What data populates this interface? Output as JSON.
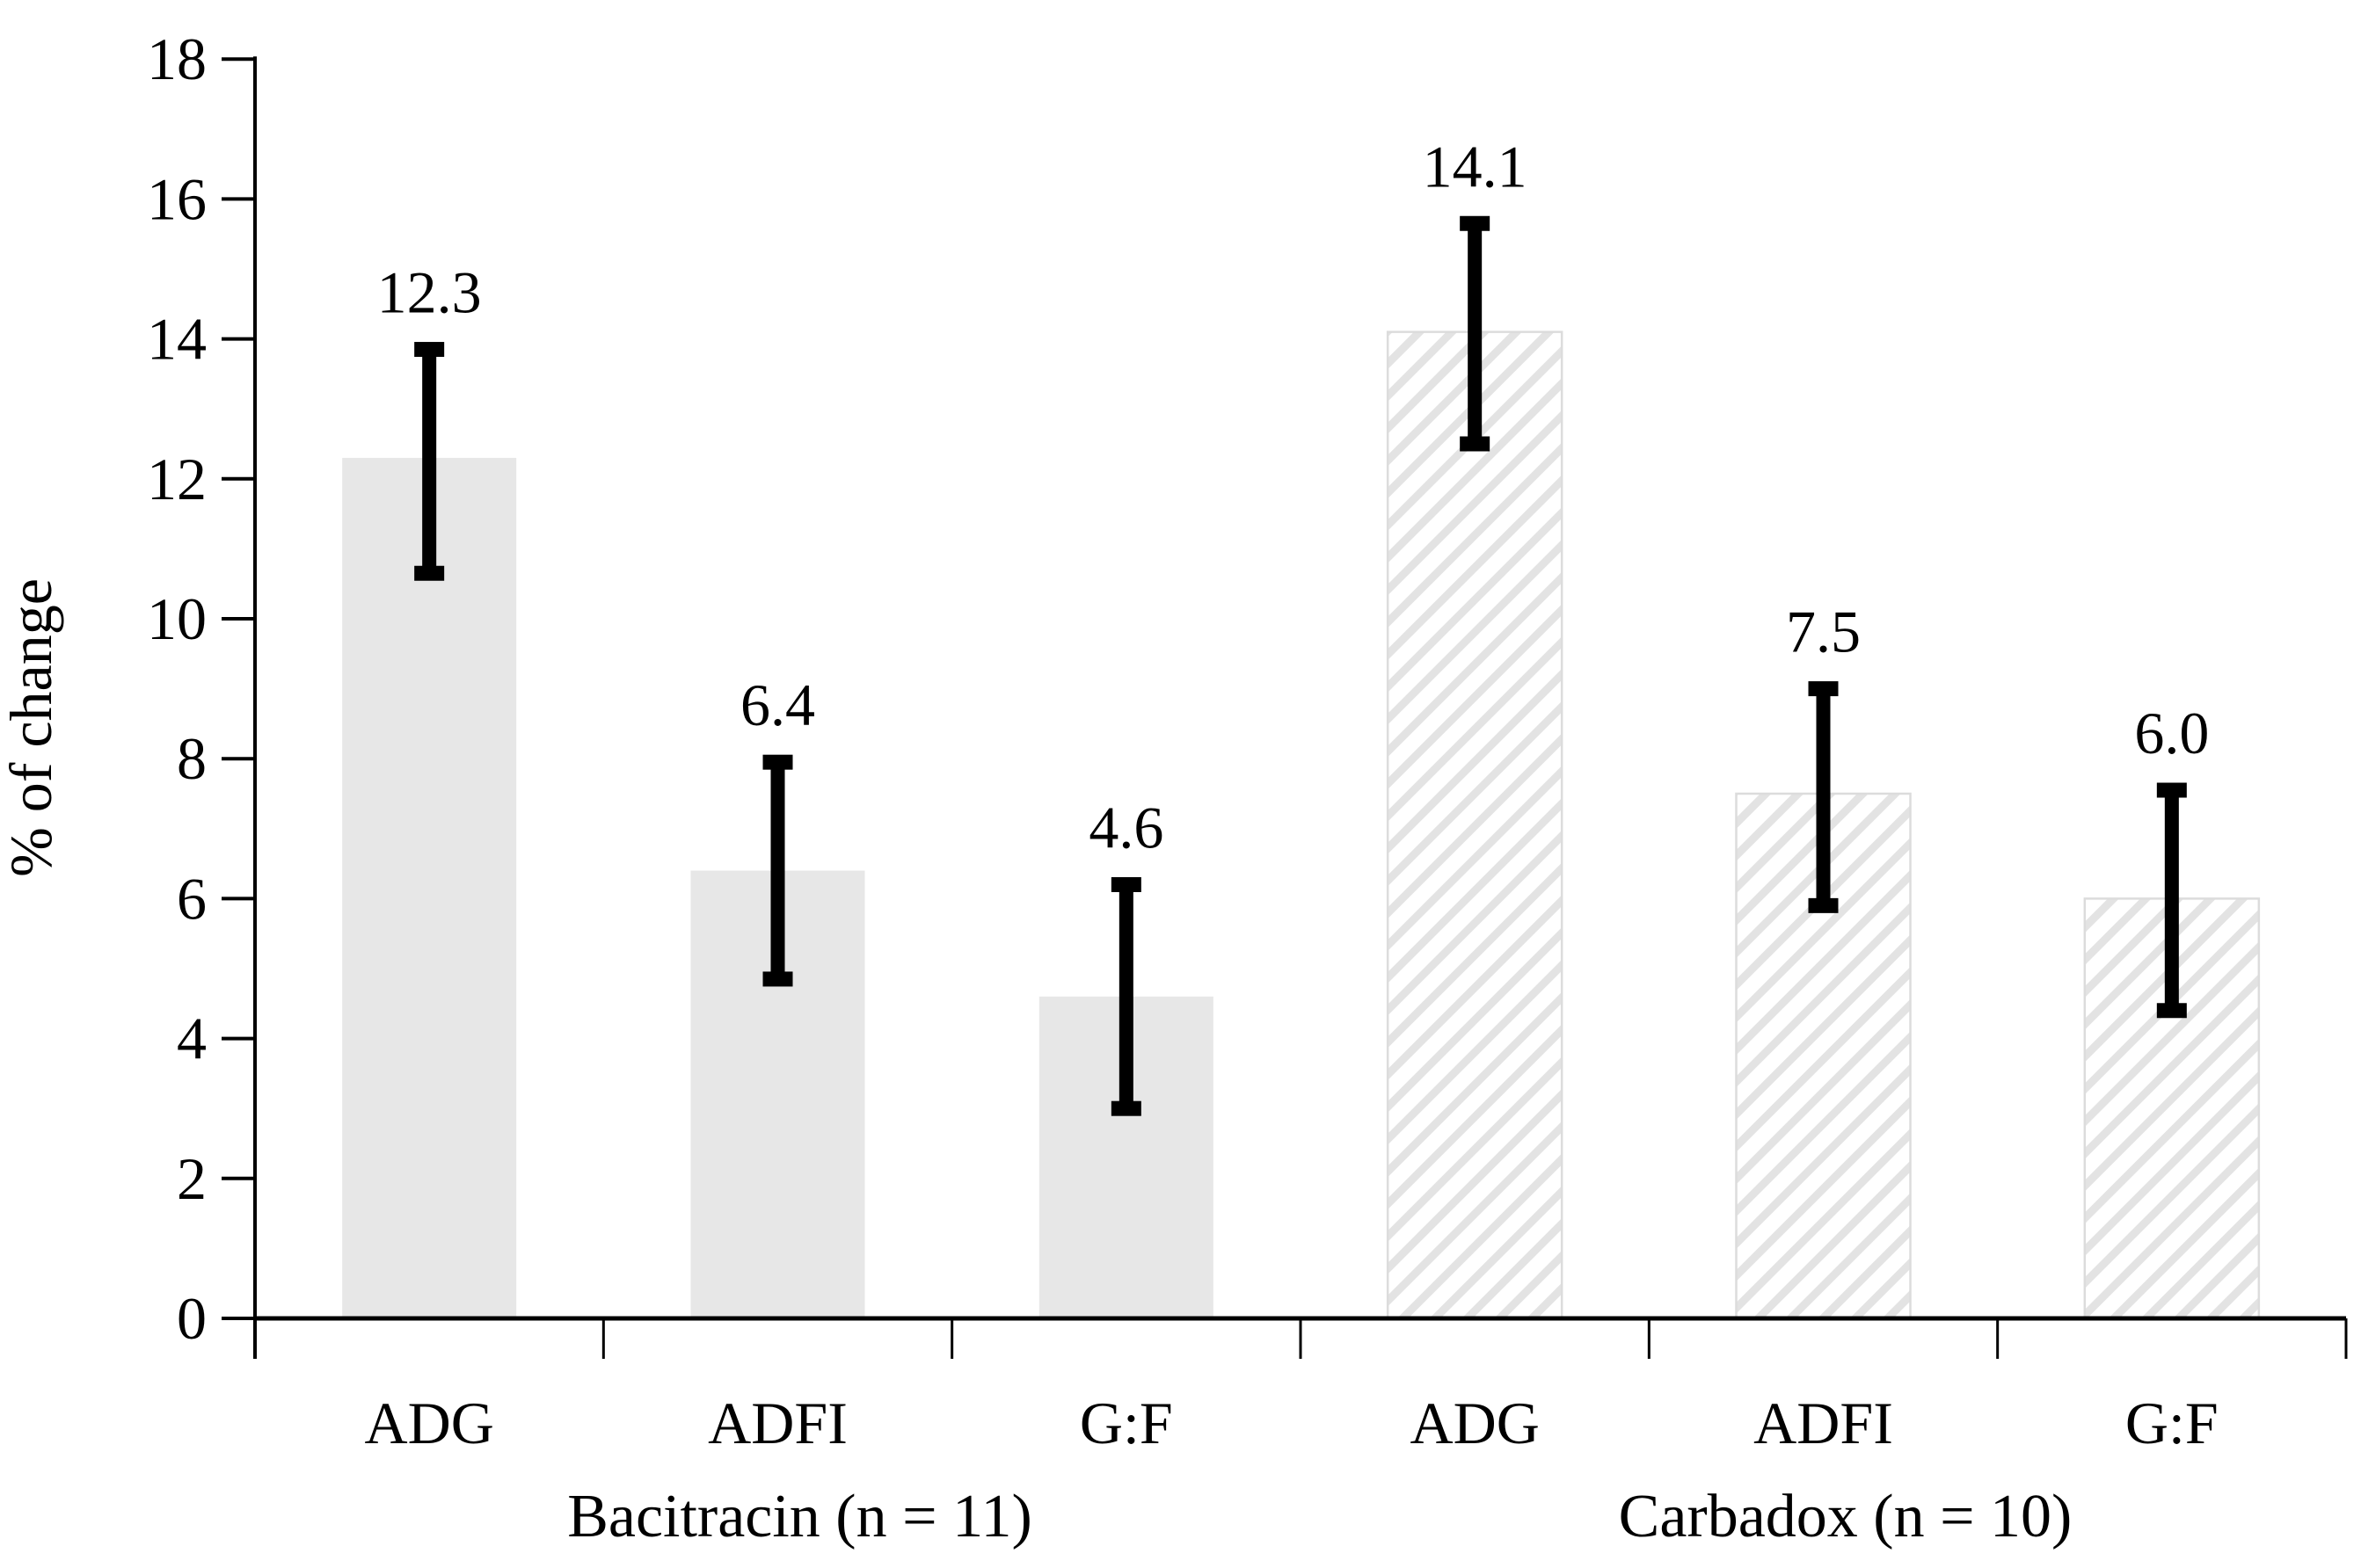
{
  "chart_data": {
    "type": "bar",
    "title": "",
    "xlabel": "",
    "ylabel": "% of change",
    "ylim": [
      0,
      18
    ],
    "ytick_step": 2,
    "yticks": [
      0,
      2,
      4,
      6,
      8,
      10,
      12,
      14,
      16,
      18
    ],
    "grid": false,
    "legend": "none",
    "categories_per_group": [
      "ADG",
      "ADFI",
      "G:F"
    ],
    "groups": [
      {
        "label": "Bacitracin (n = 11)",
        "bar_pattern": "solid",
        "categories": [
          "ADG",
          "ADFI",
          "G:F"
        ],
        "values": [
          12.3,
          6.4,
          4.6
        ],
        "data_labels": [
          "12.3",
          "6.4",
          "4.6"
        ],
        "error_high": [
          13.85,
          7.95,
          6.2
        ],
        "error_low": [
          10.65,
          4.85,
          3.0
        ]
      },
      {
        "label": "Carbadox (n = 10)",
        "bar_pattern": "diagonal-hatch",
        "categories": [
          "ADG",
          "ADFI",
          "G:F"
        ],
        "values": [
          14.1,
          7.5,
          6.0
        ],
        "data_labels": [
          "14.1",
          "7.5",
          "6.0"
        ],
        "error_high": [
          15.65,
          9.0,
          7.55
        ],
        "error_low": [
          12.5,
          5.9,
          4.4
        ]
      }
    ],
    "colors": {
      "background": "#ffffff",
      "solid_bar_fill": "#e7e7e7",
      "hatch_stripe": "#e3e3e3",
      "hatch_background": "#ffffff",
      "hatch_bar_border": "#dcdcdc",
      "axis": "#000000",
      "error_bar": "#000000",
      "text": "#000000"
    }
  }
}
